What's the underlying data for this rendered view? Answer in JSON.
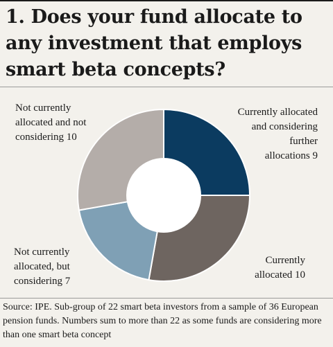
{
  "title": "1. Does your fund allocate to any investment that employs smart beta concepts?",
  "chart_data": {
    "type": "pie",
    "donut": true,
    "slices": [
      {
        "label": "Currently allocated and considering further allocations",
        "value": 9,
        "color": "#0b3b60"
      },
      {
        "label": "Currently allocated",
        "value": 10,
        "color": "#6e6560"
      },
      {
        "label": "Not currently allocated, but considering",
        "value": 7,
        "color": "#7fa0b5"
      },
      {
        "label": "Not currently allocated and not considering",
        "value": 10,
        "color": "#b4ada9"
      }
    ]
  },
  "labels": {
    "top_left": [
      "Not currently",
      "allocated and not",
      "considering 10"
    ],
    "top_right": [
      "Currently allocated",
      "and considering",
      "further",
      "allocations  9"
    ],
    "bottom_right": [
      "Currently",
      "allocated 10"
    ],
    "bottom_left": [
      "Not currently",
      "allocated, but",
      "considering  7"
    ]
  },
  "source": "Source: IPE. Sub-group of 22 smart beta investors from a sample of 36 European pension funds. Numbers sum to more than 22 as some funds are considering more than one smart beta concept"
}
